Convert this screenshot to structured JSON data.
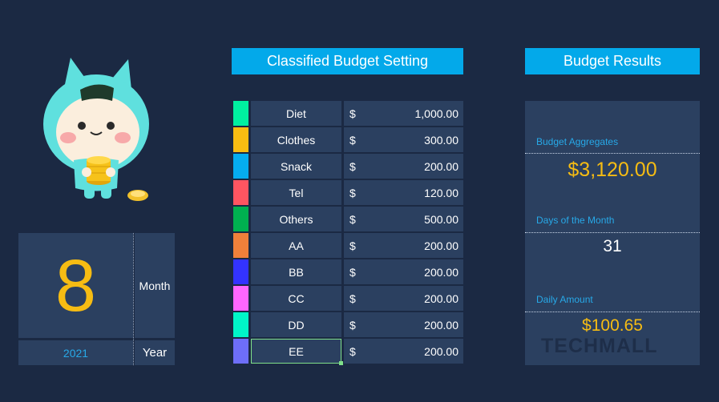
{
  "date_panel": {
    "month_value": "8",
    "month_label": "Month",
    "year_value": "2021",
    "year_label": "Year"
  },
  "budget_setting": {
    "title": "Classified Budget Setting",
    "currency_symbol": "$",
    "categories": [
      {
        "label": "Diet",
        "amount": "1,000.00",
        "color": "#00f0a0"
      },
      {
        "label": "Clothes",
        "amount": "300.00",
        "color": "#f8bc12"
      },
      {
        "label": "Snack",
        "amount": "200.00",
        "color": "#05adf0"
      },
      {
        "label": "Tel",
        "amount": "120.00",
        "color": "#ff5561"
      },
      {
        "label": "Others",
        "amount": "500.00",
        "color": "#00b050"
      },
      {
        "label": "AA",
        "amount": "200.00",
        "color": "#f0803a"
      },
      {
        "label": "BB",
        "amount": "200.00",
        "color": "#3333ff"
      },
      {
        "label": "CC",
        "amount": "200.00",
        "color": "#ff66ff"
      },
      {
        "label": "DD",
        "amount": "200.00",
        "color": "#00f5c8"
      },
      {
        "label": "EE",
        "amount": "200.00",
        "color": "#6e6ef8"
      }
    ]
  },
  "budget_results": {
    "title": "Budget Results",
    "aggregates_label": "Budget Aggregates",
    "aggregates_value": "$3,120.00",
    "days_label": "Days of the Month",
    "days_value": "31",
    "daily_label": "Daily Amount",
    "daily_value": "$100.65",
    "watermark": "TECHMALL"
  },
  "colors": {
    "background": "#1b2943",
    "panel": "#2b4060",
    "header": "#03a9ea",
    "accent_gold": "#f6bc13",
    "accent_blue": "#27a9e8"
  },
  "mascot_icon": "cartoon-character-holding-coins-icon"
}
